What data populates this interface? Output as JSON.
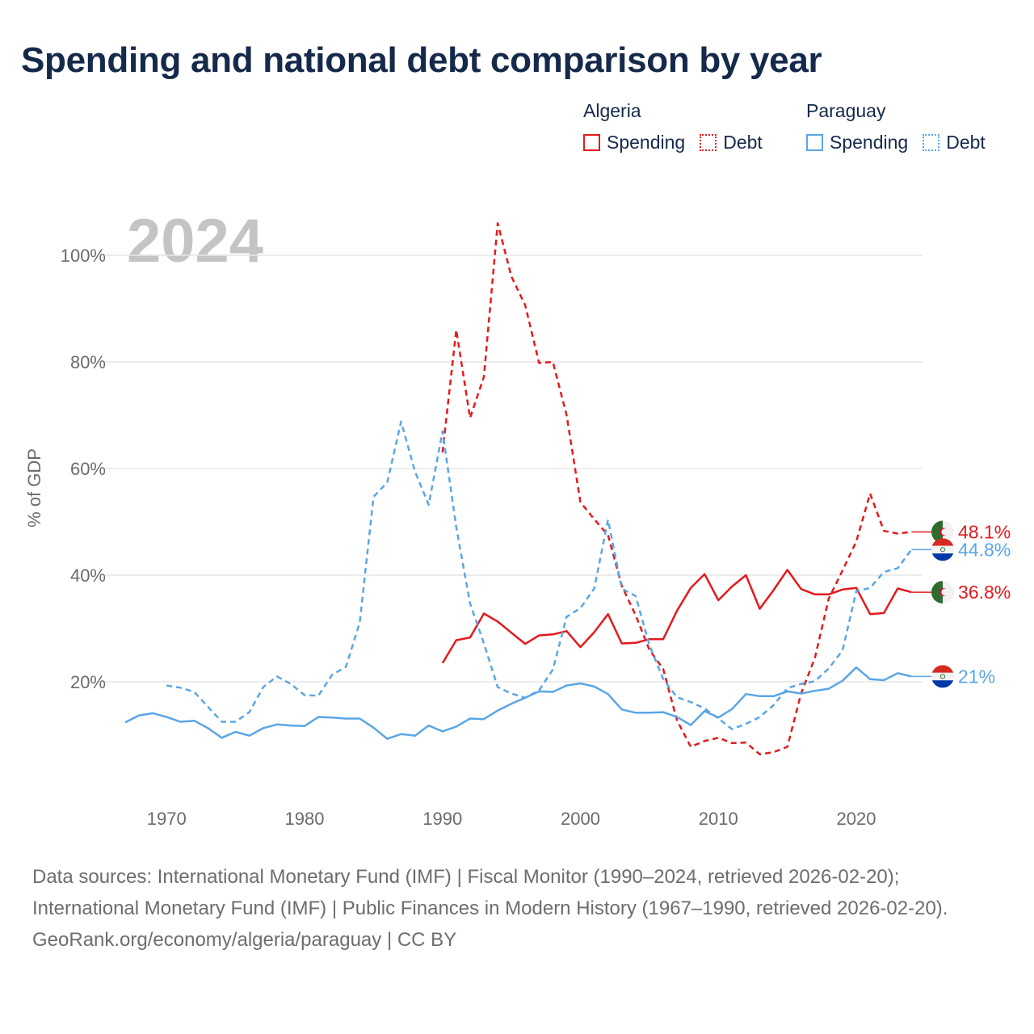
{
  "title": "Spending and national debt comparison by year",
  "year_watermark": "2024",
  "legend": {
    "groups": [
      {
        "country": "Algeria",
        "color": "#e41a1c",
        "items": [
          {
            "label": "Spending",
            "style": "solid"
          },
          {
            "label": "Debt",
            "style": "dotted"
          }
        ]
      },
      {
        "country": "Paraguay",
        "color": "#5aa6e6",
        "items": [
          {
            "label": "Spending",
            "style": "solid"
          },
          {
            "label": "Debt",
            "style": "dotted"
          }
        ]
      }
    ]
  },
  "colors": {
    "algeria": "#e41a1c",
    "paraguay": "#5aa6e6",
    "grid": "#e6e6e6",
    "axis_text": "#6b6b6b"
  },
  "chart_data": {
    "type": "line",
    "ylabel": "% of GDP",
    "xlabel": "",
    "xlim": [
      1967,
      2024
    ],
    "ylim": [
      0,
      110
    ],
    "x_ticks": [
      1970,
      1980,
      1990,
      2000,
      2010,
      2020
    ],
    "y_ticks": [
      {
        "value": 20,
        "label": "20%"
      },
      {
        "value": 40,
        "label": "40%"
      },
      {
        "value": 60,
        "label": "60%"
      },
      {
        "value": 80,
        "label": "80%"
      },
      {
        "value": 100,
        "label": "100%"
      }
    ],
    "series": [
      {
        "name": "Algeria Spending",
        "country": "Algeria",
        "metric": "Spending",
        "dashed": false,
        "end_label": "36.8%",
        "flag": "algeria",
        "x": [
          1990,
          1991,
          1992,
          1993,
          1994,
          1995,
          1996,
          1997,
          1998,
          1999,
          2000,
          2001,
          2002,
          2003,
          2004,
          2005,
          2006,
          2007,
          2008,
          2009,
          2010,
          2011,
          2012,
          2013,
          2014,
          2015,
          2016,
          2017,
          2018,
          2019,
          2020,
          2021,
          2022,
          2023,
          2024
        ],
        "values": [
          23.5,
          27.8,
          28.3,
          32.8,
          31.3,
          29.2,
          27.1,
          28.7,
          28.9,
          29.5,
          26.5,
          29.3,
          32.7,
          27.2,
          27.3,
          28.0,
          28.0,
          33.3,
          37.6,
          40.2,
          35.3,
          37.9,
          40.0,
          33.7,
          37.2,
          41.0,
          37.4,
          36.4,
          36.4,
          37.3,
          37.6,
          32.7,
          32.9,
          37.5,
          36.8
        ]
      },
      {
        "name": "Algeria Debt",
        "country": "Algeria",
        "metric": "Debt",
        "dashed": true,
        "end_label": "48.1%",
        "flag": "algeria",
        "x": [
          1990,
          1991,
          1992,
          1993,
          1994,
          1995,
          1996,
          1997,
          1998,
          1999,
          2000,
          2001,
          2002,
          2003,
          2004,
          2005,
          2006,
          2007,
          2008,
          2009,
          2010,
          2011,
          2012,
          2013,
          2014,
          2015,
          2016,
          2017,
          2018,
          2019,
          2020,
          2021,
          2022,
          2023,
          2024
        ],
        "values": [
          63.0,
          86.0,
          69.5,
          77.2,
          106.0,
          96.0,
          90.6,
          79.8,
          80.0,
          70.0,
          53.7,
          50.5,
          47.5,
          38.0,
          32.5,
          26.0,
          22.4,
          12.8,
          7.8,
          8.9,
          9.5,
          8.5,
          8.6,
          6.4,
          6.8,
          7.8,
          17.8,
          24.5,
          35.6,
          40.9,
          46.3,
          55.3,
          48.3,
          47.8,
          48.1
        ]
      },
      {
        "name": "Paraguay Spending",
        "country": "Paraguay",
        "metric": "Spending",
        "dashed": false,
        "end_label": "21%",
        "flag": "paraguay",
        "x": [
          1967,
          1968,
          1969,
          1970,
          1971,
          1972,
          1973,
          1974,
          1975,
          1976,
          1977,
          1978,
          1979,
          1980,
          1981,
          1982,
          1983,
          1984,
          1985,
          1986,
          1987,
          1988,
          1989,
          1990,
          1991,
          1992,
          1993,
          1994,
          1995,
          1996,
          1997,
          1998,
          1999,
          2000,
          2001,
          2002,
          2003,
          2004,
          2005,
          2006,
          2007,
          2008,
          2009,
          2010,
          2011,
          2012,
          2013,
          2014,
          2015,
          2016,
          2017,
          2018,
          2019,
          2020,
          2021,
          2022,
          2023,
          2024
        ],
        "values": [
          12.4,
          13.7,
          14.1,
          13.4,
          12.5,
          12.7,
          11.3,
          9.5,
          10.6,
          9.9,
          11.3,
          12.0,
          11.8,
          11.7,
          13.4,
          13.3,
          13.1,
          13.1,
          11.4,
          9.3,
          10.2,
          9.9,
          11.8,
          10.7,
          11.6,
          13.1,
          13.0,
          14.6,
          15.9,
          17.0,
          18.2,
          18.1,
          19.3,
          19.7,
          19.1,
          17.7,
          14.8,
          14.2,
          14.2,
          14.3,
          13.4,
          11.9,
          14.5,
          13.3,
          14.9,
          17.7,
          17.3,
          17.3,
          18.2,
          17.8,
          18.3,
          18.7,
          20.2,
          22.7,
          20.5,
          20.3,
          21.6,
          21.0
        ]
      },
      {
        "name": "Paraguay Debt",
        "country": "Paraguay",
        "metric": "Debt",
        "dashed": true,
        "end_label": "44.8%",
        "flag": "paraguay",
        "x": [
          1970,
          1971,
          1972,
          1973,
          1974,
          1975,
          1976,
          1977,
          1978,
          1979,
          1980,
          1981,
          1982,
          1983,
          1984,
          1985,
          1986,
          1987,
          1988,
          1989,
          1990,
          1991,
          1992,
          1993,
          1994,
          1995,
          1996,
          1997,
          1998,
          1999,
          2000,
          2001,
          2002,
          2003,
          2004,
          2005,
          2006,
          2007,
          2008,
          2009,
          2010,
          2011,
          2012,
          2013,
          2014,
          2015,
          2016,
          2017,
          2018,
          2019,
          2020,
          2021,
          2022,
          2023,
          2024
        ],
        "values": [
          19.3,
          18.9,
          18.1,
          15.3,
          12.5,
          12.5,
          14.3,
          19.0,
          21.0,
          19.6,
          17.5,
          17.4,
          21.3,
          22.8,
          31.1,
          54.7,
          57.4,
          68.8,
          59.5,
          53.2,
          67.0,
          49.0,
          34.7,
          27.2,
          19.0,
          17.8,
          17.0,
          18.4,
          22.3,
          32.2,
          33.8,
          37.5,
          50.4,
          37.5,
          36.1,
          26.9,
          20.5,
          17.1,
          16.2,
          15.0,
          13.1,
          11.1,
          12.1,
          13.4,
          15.6,
          18.8,
          19.6,
          20.1,
          22.5,
          25.9,
          37.0,
          37.6,
          40.6,
          41.3,
          44.8
        ]
      }
    ]
  }
}
